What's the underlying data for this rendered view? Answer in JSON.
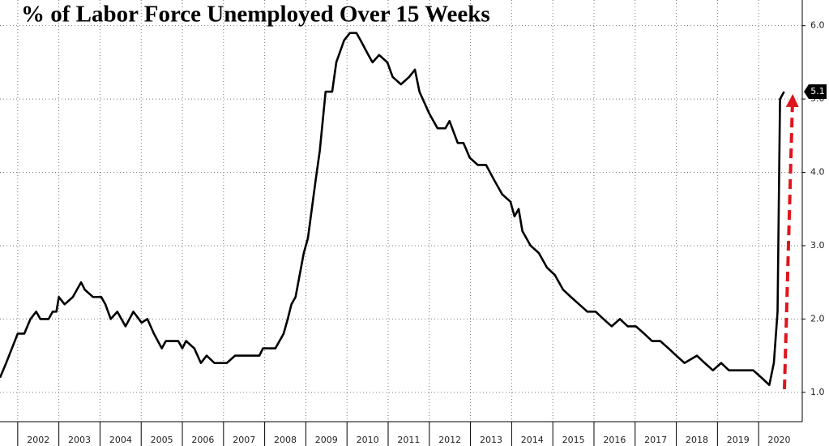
{
  "chart_data": {
    "type": "line",
    "title": "% of Labor Force Unemployed Over 15 Weeks",
    "series": [
      {
        "color": "#000000",
        "x": [
          2001.57,
          2001.72,
          2001.86,
          2002.0,
          2002.16,
          2002.31,
          2002.45,
          2002.55,
          2002.75,
          2002.85,
          2002.94,
          2003.0,
          2003.14,
          2003.34,
          2003.54,
          2003.63,
          2003.83,
          2004.03,
          2004.13,
          2004.26,
          2004.42,
          2004.62,
          2004.81,
          2005.01,
          2005.15,
          2005.31,
          2005.5,
          2005.6,
          2005.9,
          2006.0,
          2006.09,
          2006.29,
          2006.45,
          2006.59,
          2006.78,
          2007.08,
          2007.28,
          2007.87,
          2007.96,
          2008.26,
          2008.46,
          2008.56,
          2008.65,
          2008.75,
          2008.85,
          2008.95,
          2009.05,
          2009.24,
          2009.34,
          2009.48,
          2009.64,
          2009.74,
          2009.93,
          2010.07,
          2010.23,
          2010.33,
          2010.52,
          2010.62,
          2010.78,
          2010.98,
          2011.11,
          2011.31,
          2011.51,
          2011.65,
          2011.76,
          2012.0,
          2012.2,
          2012.39,
          2012.49,
          2012.69,
          2012.83,
          2012.98,
          2013.18,
          2013.38,
          2013.57,
          2013.77,
          2013.97,
          2014.07,
          2014.17,
          2014.26,
          2014.46,
          2014.66,
          2014.86,
          2015.05,
          2015.25,
          2015.44,
          2015.64,
          2015.84,
          2016.04,
          2016.23,
          2016.43,
          2016.63,
          2016.82,
          2017.02,
          2017.22,
          2017.41,
          2017.61,
          2017.81,
          2018.0,
          2018.2,
          2018.5,
          2018.69,
          2018.89,
          2019.09,
          2019.28,
          2019.87,
          2020.07,
          2020.26,
          2020.37,
          2020.46,
          2020.52,
          2020.62
        ],
        "values": [
          1.2,
          1.4,
          1.6,
          1.8,
          1.8,
          2.0,
          2.1,
          2.0,
          2.0,
          2.1,
          2.1,
          2.3,
          2.2,
          2.3,
          2.5,
          2.4,
          2.3,
          2.3,
          2.2,
          2.0,
          2.1,
          1.9,
          2.1,
          1.95,
          2.0,
          1.8,
          1.6,
          1.7,
          1.7,
          1.6,
          1.7,
          1.6,
          1.4,
          1.5,
          1.4,
          1.4,
          1.5,
          1.5,
          1.6,
          1.6,
          1.8,
          2.0,
          2.2,
          2.3,
          2.6,
          2.9,
          3.1,
          3.9,
          4.3,
          5.1,
          5.1,
          5.5,
          5.8,
          5.9,
          5.9,
          5.8,
          5.6,
          5.5,
          5.6,
          5.5,
          5.3,
          5.2,
          5.3,
          5.4,
          5.1,
          4.8,
          4.6,
          4.6,
          4.7,
          4.4,
          4.4,
          4.2,
          4.1,
          4.1,
          3.9,
          3.7,
          3.6,
          3.4,
          3.5,
          3.2,
          3.0,
          2.9,
          2.7,
          2.6,
          2.4,
          2.3,
          2.2,
          2.1,
          2.1,
          2.0,
          1.9,
          2.0,
          1.9,
          1.9,
          1.8,
          1.7,
          1.7,
          1.6,
          1.5,
          1.4,
          1.5,
          1.4,
          1.3,
          1.4,
          1.3,
          1.3,
          1.2,
          1.1,
          1.4,
          2.1,
          5.0,
          5.1
        ]
      }
    ],
    "xlim": [
      2001.57,
      2021.06
    ],
    "xticks": [
      {
        "value": 2002.5,
        "label": "2002"
      },
      {
        "value": 2003.5,
        "label": "2003"
      },
      {
        "value": 2004.5,
        "label": "2004"
      },
      {
        "value": 2005.5,
        "label": "2005"
      },
      {
        "value": 2006.5,
        "label": "2006"
      },
      {
        "value": 2007.5,
        "label": "2007"
      },
      {
        "value": 2008.5,
        "label": "2008"
      },
      {
        "value": 2009.5,
        "label": "2009"
      },
      {
        "value": 2010.5,
        "label": "2010"
      },
      {
        "value": 2011.5,
        "label": "2011"
      },
      {
        "value": 2012.5,
        "label": "2012"
      },
      {
        "value": 2013.5,
        "label": "2013"
      },
      {
        "value": 2014.5,
        "label": "2014"
      },
      {
        "value": 2015.5,
        "label": "2015"
      },
      {
        "value": 2016.5,
        "label": "2016"
      },
      {
        "value": 2017.5,
        "label": "2017"
      },
      {
        "value": 2018.5,
        "label": "2018"
      },
      {
        "value": 2019.5,
        "label": "2019"
      },
      {
        "value": 2020.5,
        "label": "2020"
      }
    ],
    "ylim": [
      0.6,
      6.35
    ],
    "yticks": [
      {
        "value": 1,
        "label": "1.0"
      },
      {
        "value": 2,
        "label": "2.0"
      },
      {
        "value": 3,
        "label": "3.0"
      },
      {
        "value": 4,
        "label": "4.0"
      },
      {
        "value": 5,
        "label": "5.0"
      },
      {
        "value": 6,
        "label": "6.0"
      }
    ],
    "grid": true,
    "annotation": {
      "value": 5.1,
      "label": "5.1"
    }
  }
}
